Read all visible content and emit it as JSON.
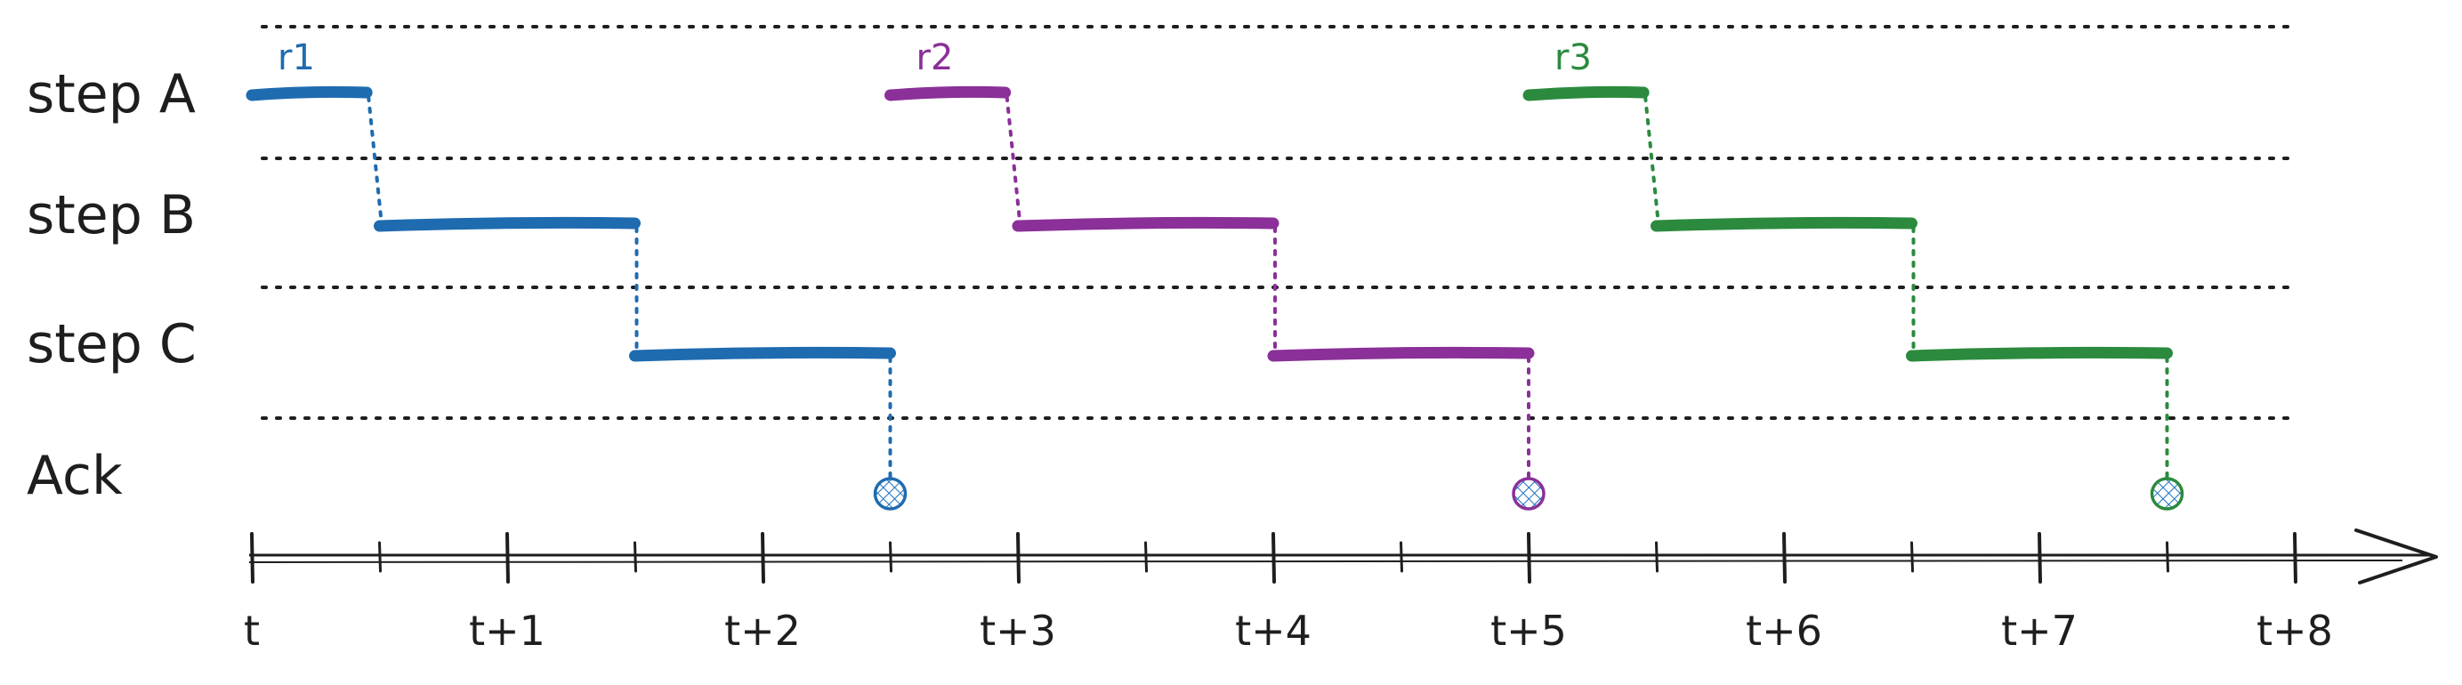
{
  "rows": [
    {
      "id": "A",
      "label": "step A"
    },
    {
      "id": "B",
      "label": "step B"
    },
    {
      "id": "C",
      "label": "step C"
    },
    {
      "id": "ack",
      "label": "Ack"
    }
  ],
  "timeline": {
    "ticks": [
      "t",
      "t+1",
      "t+2",
      "t+3",
      "t+4",
      "t+5",
      "t+6",
      "t+7",
      "t+8"
    ],
    "minor_ticks_per_unit": 2
  },
  "requests": [
    {
      "label": "r1",
      "color": "#1f6bb0",
      "segments": [
        {
          "row": "A",
          "start": 0.0,
          "end": 0.45
        },
        {
          "row": "B",
          "start": 0.5,
          "end": 1.5
        },
        {
          "row": "C",
          "start": 1.5,
          "end": 2.5
        }
      ],
      "ack": 2.5
    },
    {
      "label": "r2",
      "color": "#8a3098",
      "segments": [
        {
          "row": "A",
          "start": 2.5,
          "end": 2.95
        },
        {
          "row": "B",
          "start": 3.0,
          "end": 4.0
        },
        {
          "row": "C",
          "start": 4.0,
          "end": 5.0
        }
      ],
      "ack": 5.0
    },
    {
      "label": "r3",
      "color": "#2b8a3e",
      "segments": [
        {
          "row": "A",
          "start": 5.0,
          "end": 5.45
        },
        {
          "row": "B",
          "start": 5.5,
          "end": 6.5
        },
        {
          "row": "C",
          "start": 6.5,
          "end": 7.5
        }
      ],
      "ack": 7.5
    }
  ]
}
